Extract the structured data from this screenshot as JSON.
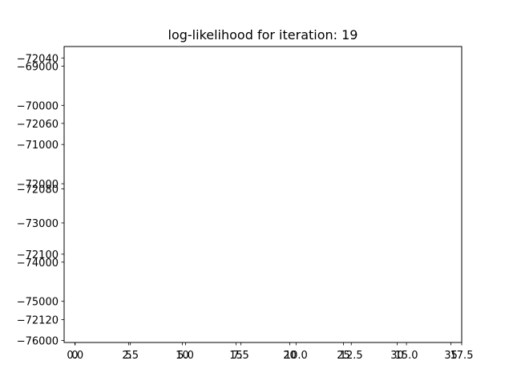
{
  "chart_data": {
    "type": "line",
    "title": "log-likelihood for iteration: 19",
    "xlabel": "",
    "ylabel": "",
    "series": [],
    "grid": false,
    "legend": "none",
    "overlaid_axes": [
      {
        "id": "axes-a",
        "xlim": [
          -0.5,
          17.5
        ],
        "ylim": [
          -72127.0,
          -72036.5
        ],
        "x_ticks": [
          {
            "value": 0.0,
            "label": "0.0"
          },
          {
            "value": 2.5,
            "label": "2.5"
          },
          {
            "value": 5.0,
            "label": "5.0"
          },
          {
            "value": 7.5,
            "label": "7.5"
          },
          {
            "value": 10.0,
            "label": "10.0"
          },
          {
            "value": 12.5,
            "label": "12.5"
          },
          {
            "value": 15.0,
            "label": "15.0"
          },
          {
            "value": 17.5,
            "label": "17.5"
          }
        ],
        "y_ticks": [
          {
            "value": -72040,
            "label": "−72040"
          },
          {
            "value": -72060,
            "label": "−72060"
          },
          {
            "value": -72080,
            "label": "−72080"
          },
          {
            "value": -72100,
            "label": "−72100"
          },
          {
            "value": -72120,
            "label": "−72120"
          }
        ]
      },
      {
        "id": "axes-b",
        "xlim": [
          -1,
          36
        ],
        "ylim": [
          -76050,
          -68500
        ],
        "x_ticks": [
          {
            "value": 0,
            "label": "0"
          },
          {
            "value": 5,
            "label": "5"
          },
          {
            "value": 10,
            "label": "10"
          },
          {
            "value": 15,
            "label": "15"
          },
          {
            "value": 20,
            "label": "20"
          },
          {
            "value": 25,
            "label": "25"
          },
          {
            "value": 30,
            "label": "30"
          },
          {
            "value": 35,
            "label": "35"
          }
        ],
        "y_ticks": [
          {
            "value": -69000,
            "label": "−69000"
          },
          {
            "value": -70000,
            "label": "−70000"
          },
          {
            "value": -71000,
            "label": "−71000"
          },
          {
            "value": -72000,
            "label": "−72000"
          },
          {
            "value": -73000,
            "label": "−73000"
          },
          {
            "value": -74000,
            "label": "−74000"
          },
          {
            "value": -75000,
            "label": "−75000"
          },
          {
            "value": -76000,
            "label": "−76000"
          }
        ]
      }
    ]
  },
  "colors": {
    "background": "#ffffff",
    "axes": "#000000",
    "text": "#000000"
  }
}
